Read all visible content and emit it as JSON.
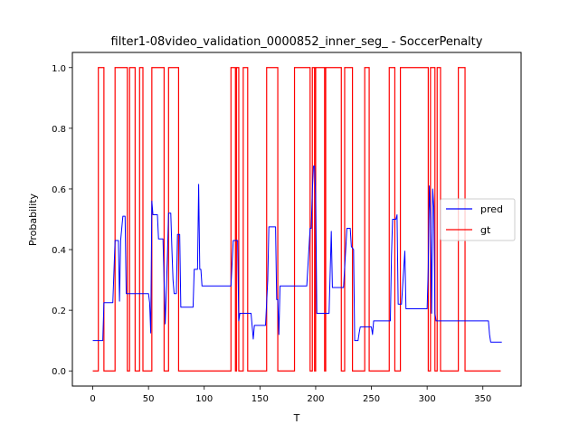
{
  "chart_data": {
    "type": "line",
    "title": "filter1-08video_validation_0000852_inner_seg_ - SoccerPenalty",
    "xlabel": "T",
    "ylabel": "Probability",
    "xlim": [
      -18.3,
      384.3
    ],
    "ylim": [
      -0.05,
      1.05
    ],
    "xticks": [
      0,
      50,
      100,
      150,
      200,
      250,
      300,
      350
    ],
    "yticks": [
      0.0,
      0.2,
      0.4,
      0.6,
      0.8,
      1.0
    ],
    "xtick_labels": [
      "0",
      "50",
      "100",
      "150",
      "200",
      "250",
      "300",
      "350"
    ],
    "ytick_labels": [
      "0.0",
      "0.2",
      "0.4",
      "0.6",
      "0.8",
      "1.0"
    ],
    "grid": false,
    "legend_position": "center-right",
    "series": [
      {
        "name": "pred",
        "color": "#0000ff",
        "points": [
          [
            0,
            0.1
          ],
          [
            9,
            0.1
          ],
          [
            10,
            0.225
          ],
          [
            18,
            0.225
          ],
          [
            20,
            0.43
          ],
          [
            23,
            0.43
          ],
          [
            24,
            0.23
          ],
          [
            25,
            0.43
          ],
          [
            27,
            0.51
          ],
          [
            29,
            0.51
          ],
          [
            30,
            0.255
          ],
          [
            50,
            0.255
          ],
          [
            51,
            0.225
          ],
          [
            52,
            0.125
          ],
          [
            53,
            0.56
          ],
          [
            54,
            0.515
          ],
          [
            58,
            0.515
          ],
          [
            59,
            0.435
          ],
          [
            63,
            0.435
          ],
          [
            65,
            0.155
          ],
          [
            67,
            0.38
          ],
          [
            68,
            0.52
          ],
          [
            70,
            0.52
          ],
          [
            71,
            0.4
          ],
          [
            72,
            0.3
          ],
          [
            73,
            0.255
          ],
          [
            75,
            0.255
          ],
          [
            76,
            0.45
          ],
          [
            78,
            0.45
          ],
          [
            79,
            0.21
          ],
          [
            90,
            0.21
          ],
          [
            91,
            0.335
          ],
          [
            94,
            0.335
          ],
          [
            95,
            0.615
          ],
          [
            96,
            0.335
          ],
          [
            97,
            0.335
          ],
          [
            98,
            0.28
          ],
          [
            124,
            0.28
          ],
          [
            126,
            0.43
          ],
          [
            130,
            0.43
          ],
          [
            131,
            0.165
          ],
          [
            132,
            0.19
          ],
          [
            142,
            0.19
          ],
          [
            144,
            0.105
          ],
          [
            145,
            0.15
          ],
          [
            155,
            0.15
          ],
          [
            157,
            0.3
          ],
          [
            158,
            0.475
          ],
          [
            164,
            0.475
          ],
          [
            165,
            0.235
          ],
          [
            166,
            0.235
          ],
          [
            167,
            0.12
          ],
          [
            168,
            0.28
          ],
          [
            192,
            0.28
          ],
          [
            195,
            0.47
          ],
          [
            196,
            0.47
          ],
          [
            197,
            0.595
          ],
          [
            198,
            0.675
          ],
          [
            199,
            0.675
          ],
          [
            200,
            0.58
          ],
          [
            201,
            0.19
          ],
          [
            212,
            0.19
          ],
          [
            214,
            0.46
          ],
          [
            215,
            0.275
          ],
          [
            225,
            0.275
          ],
          [
            228,
            0.47
          ],
          [
            231,
            0.47
          ],
          [
            232,
            0.41
          ],
          [
            234,
            0.4
          ],
          [
            235,
            0.1
          ],
          [
            238,
            0.1
          ],
          [
            239,
            0.125
          ],
          [
            240,
            0.145
          ],
          [
            250,
            0.145
          ],
          [
            251,
            0.12
          ],
          [
            252,
            0.165
          ],
          [
            267,
            0.165
          ],
          [
            268,
            0.38
          ],
          [
            269,
            0.5
          ],
          [
            272,
            0.5
          ],
          [
            273,
            0.515
          ],
          [
            274,
            0.22
          ],
          [
            277,
            0.22
          ],
          [
            280,
            0.395
          ],
          [
            281,
            0.205
          ],
          [
            300,
            0.205
          ],
          [
            301,
            0.34
          ],
          [
            302,
            0.61
          ],
          [
            303,
            0.5
          ],
          [
            304,
            0.19
          ],
          [
            305,
            0.6
          ],
          [
            306,
            0.54
          ],
          [
            307,
            0.19
          ],
          [
            308,
            0.165
          ],
          [
            355,
            0.165
          ],
          [
            356,
            0.12
          ],
          [
            357,
            0.095
          ],
          [
            367,
            0.095
          ]
        ]
      },
      {
        "name": "gt",
        "color": "#ff0000",
        "segments_value_1": [
          [
            5,
            10
          ],
          [
            20,
            31
          ],
          [
            33,
            38
          ],
          [
            42,
            45
          ],
          [
            53,
            64
          ],
          [
            68,
            77
          ],
          [
            124,
            128
          ],
          [
            129,
            131
          ],
          [
            135,
            139
          ],
          [
            156,
            166
          ],
          [
            181,
            195
          ],
          [
            197,
            199
          ],
          [
            200,
            208
          ],
          [
            209,
            223
          ],
          [
            226,
            233
          ],
          [
            244,
            248
          ],
          [
            266,
            271
          ],
          [
            276,
            301
          ],
          [
            303,
            307
          ],
          [
            309,
            312
          ],
          [
            328,
            334
          ]
        ],
        "x_start": 0,
        "x_end": 366,
        "baseline": 0.0
      }
    ]
  }
}
